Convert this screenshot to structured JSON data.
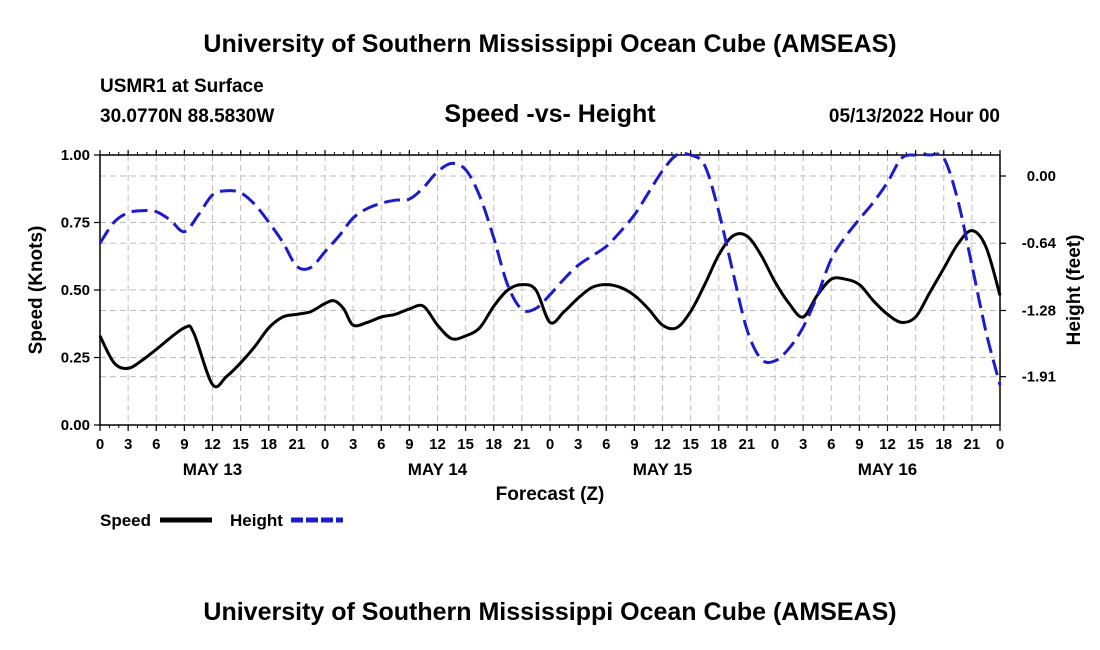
{
  "header": {
    "title": "University of Southern Mississippi Ocean Cube (AMSEAS)",
    "station": "USMR1 at Surface",
    "coords": "30.0770N  88.5830W",
    "chart_title": "Speed -vs- Height",
    "datetime": "05/13/2022 Hour 00"
  },
  "footer": {
    "title": "University of Southern Mississippi Ocean Cube (AMSEAS)"
  },
  "legend": {
    "speed_label": "Speed",
    "height_label": "Height"
  },
  "colors": {
    "speed": "#000000",
    "height": "#1c1ccc",
    "grid": "#bdbdbd"
  },
  "chart_data": {
    "type": "line",
    "title": "Speed -vs- Height",
    "xlabel": "Forecast (Z)",
    "ylabel_left": "Speed (Knots)",
    "ylabel_right": "Height (feet)",
    "x_ticks": [
      "0",
      "3",
      "6",
      "9",
      "12",
      "15",
      "18",
      "21",
      "0",
      "3",
      "6",
      "9",
      "12",
      "15",
      "18",
      "21",
      "0",
      "3",
      "6",
      "9",
      "12",
      "15",
      "18",
      "21",
      "0",
      "3",
      "6",
      "9",
      "12",
      "15",
      "18",
      "21",
      "0"
    ],
    "day_labels": [
      "MAY 13",
      "MAY 14",
      "MAY 15",
      "MAY 16"
    ],
    "x_range_hours": [
      0,
      96
    ],
    "ylim_left": [
      0.0,
      1.0
    ],
    "yticks_left": [
      "0.00",
      "0.25",
      "0.50",
      "0.75",
      "1.00"
    ],
    "ylim_right": [
      -2.37,
      0.2
    ],
    "yticks_right": [
      "0.00",
      "-0.64",
      "-1.28",
      "-1.91"
    ],
    "series": [
      {
        "name": "Speed",
        "axis": "left",
        "style": "solid",
        "points": [
          [
            0,
            0.33
          ],
          [
            1.5,
            0.23
          ],
          [
            3,
            0.21
          ],
          [
            4.5,
            0.24
          ],
          [
            6,
            0.28
          ],
          [
            9,
            0.36
          ],
          [
            10,
            0.34
          ],
          [
            12,
            0.15
          ],
          [
            13.5,
            0.18
          ],
          [
            15,
            0.23
          ],
          [
            16.5,
            0.29
          ],
          [
            18,
            0.36
          ],
          [
            19.5,
            0.4
          ],
          [
            21,
            0.41
          ],
          [
            22.5,
            0.42
          ],
          [
            24,
            0.45
          ],
          [
            25,
            0.46
          ],
          [
            26,
            0.43
          ],
          [
            27,
            0.37
          ],
          [
            28.5,
            0.38
          ],
          [
            30,
            0.4
          ],
          [
            31.5,
            0.41
          ],
          [
            33,
            0.43
          ],
          [
            34.5,
            0.44
          ],
          [
            36,
            0.37
          ],
          [
            37.5,
            0.32
          ],
          [
            39,
            0.33
          ],
          [
            40.5,
            0.36
          ],
          [
            42,
            0.44
          ],
          [
            43.5,
            0.5
          ],
          [
            45,
            0.52
          ],
          [
            46.5,
            0.5
          ],
          [
            48,
            0.38
          ],
          [
            49.5,
            0.42
          ],
          [
            51,
            0.47
          ],
          [
            52.5,
            0.51
          ],
          [
            54,
            0.52
          ],
          [
            55.5,
            0.51
          ],
          [
            57,
            0.48
          ],
          [
            58.5,
            0.43
          ],
          [
            60,
            0.37
          ],
          [
            61.5,
            0.36
          ],
          [
            63,
            0.42
          ],
          [
            64.5,
            0.52
          ],
          [
            66,
            0.63
          ],
          [
            67.5,
            0.7
          ],
          [
            69,
            0.7
          ],
          [
            70.5,
            0.63
          ],
          [
            72,
            0.53
          ],
          [
            73.5,
            0.45
          ],
          [
            75,
            0.4
          ],
          [
            76.5,
            0.48
          ],
          [
            78,
            0.54
          ],
          [
            79.5,
            0.54
          ],
          [
            81,
            0.52
          ],
          [
            82.5,
            0.46
          ],
          [
            84,
            0.41
          ],
          [
            85.5,
            0.38
          ],
          [
            87,
            0.4
          ],
          [
            88.5,
            0.49
          ],
          [
            90,
            0.58
          ],
          [
            91.5,
            0.67
          ],
          [
            93,
            0.72
          ],
          [
            94.5,
            0.66
          ],
          [
            96,
            0.48
          ]
        ]
      },
      {
        "name": "Height",
        "axis": "right",
        "style": "dashed",
        "points": [
          [
            0,
            -0.64
          ],
          [
            1.5,
            -0.44
          ],
          [
            3,
            -0.35
          ],
          [
            4.5,
            -0.33
          ],
          [
            6,
            -0.34
          ],
          [
            7.5,
            -0.42
          ],
          [
            9,
            -0.53
          ],
          [
            10.5,
            -0.37
          ],
          [
            12,
            -0.18
          ],
          [
            13.5,
            -0.14
          ],
          [
            15,
            -0.16
          ],
          [
            16.5,
            -0.27
          ],
          [
            18,
            -0.44
          ],
          [
            19.5,
            -0.63
          ],
          [
            21,
            -0.86
          ],
          [
            22.5,
            -0.87
          ],
          [
            24,
            -0.72
          ],
          [
            25.5,
            -0.57
          ],
          [
            27,
            -0.4
          ],
          [
            28.5,
            -0.31
          ],
          [
            30,
            -0.26
          ],
          [
            31.5,
            -0.23
          ],
          [
            33,
            -0.22
          ],
          [
            34.5,
            -0.11
          ],
          [
            36,
            0.04
          ],
          [
            37.5,
            0.12
          ],
          [
            39,
            0.06
          ],
          [
            40.5,
            -0.19
          ],
          [
            42,
            -0.59
          ],
          [
            43.5,
            -1.04
          ],
          [
            45,
            -1.27
          ],
          [
            46.5,
            -1.26
          ],
          [
            48,
            -1.13
          ],
          [
            49.5,
            -0.98
          ],
          [
            51,
            -0.85
          ],
          [
            52.5,
            -0.76
          ],
          [
            54,
            -0.67
          ],
          [
            55.5,
            -0.53
          ],
          [
            57,
            -0.37
          ],
          [
            58.5,
            -0.16
          ],
          [
            60,
            0.05
          ],
          [
            61.5,
            0.24
          ],
          [
            63,
            0.26
          ],
          [
            64.5,
            0.1
          ],
          [
            66,
            -0.34
          ],
          [
            67.5,
            -0.91
          ],
          [
            69,
            -1.46
          ],
          [
            70.5,
            -1.74
          ],
          [
            72,
            -1.76
          ],
          [
            73.5,
            -1.64
          ],
          [
            75,
            -1.44
          ],
          [
            76.5,
            -1.14
          ],
          [
            78,
            -0.79
          ],
          [
            79.5,
            -0.58
          ],
          [
            81,
            -0.41
          ],
          [
            82.5,
            -0.25
          ],
          [
            84,
            -0.06
          ],
          [
            85.5,
            0.17
          ],
          [
            87,
            0.3
          ],
          [
            88.5,
            0.3
          ],
          [
            90,
            0.17
          ],
          [
            91.5,
            -0.23
          ],
          [
            93,
            -0.85
          ],
          [
            94.5,
            -1.48
          ],
          [
            96,
            -1.99
          ]
        ]
      }
    ]
  }
}
